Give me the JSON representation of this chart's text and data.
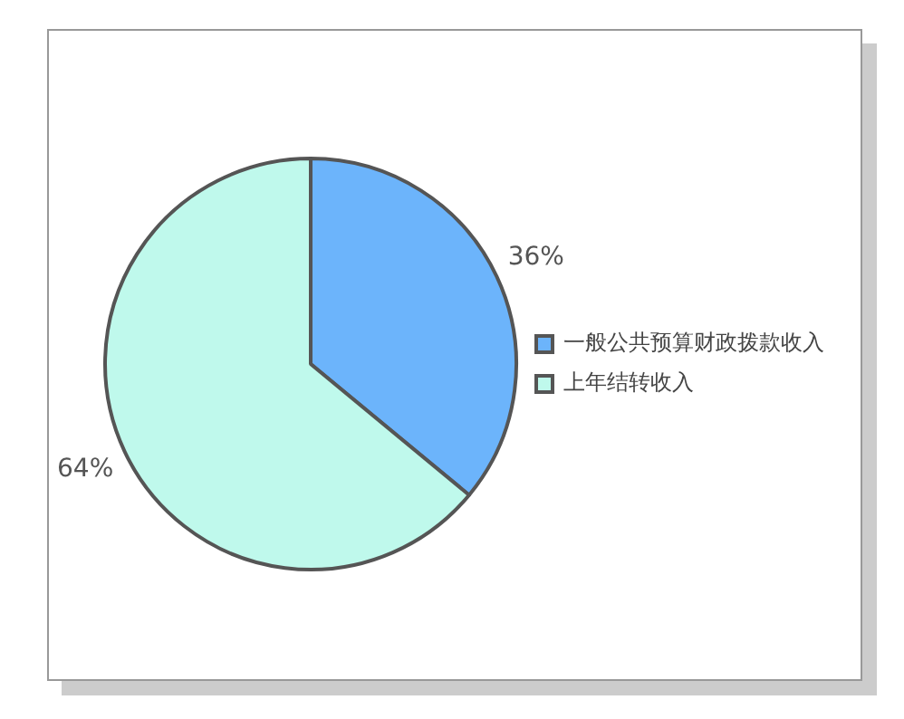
{
  "chart_data": {
    "type": "pie",
    "categories": [
      "一般公共预算财政拨款收入",
      "上年结转收入"
    ],
    "values": [
      36,
      64
    ],
    "colors": [
      "#6cb4fb",
      "#bff9ec"
    ],
    "value_labels": [
      "36%",
      "64%"
    ],
    "legend": "right"
  }
}
